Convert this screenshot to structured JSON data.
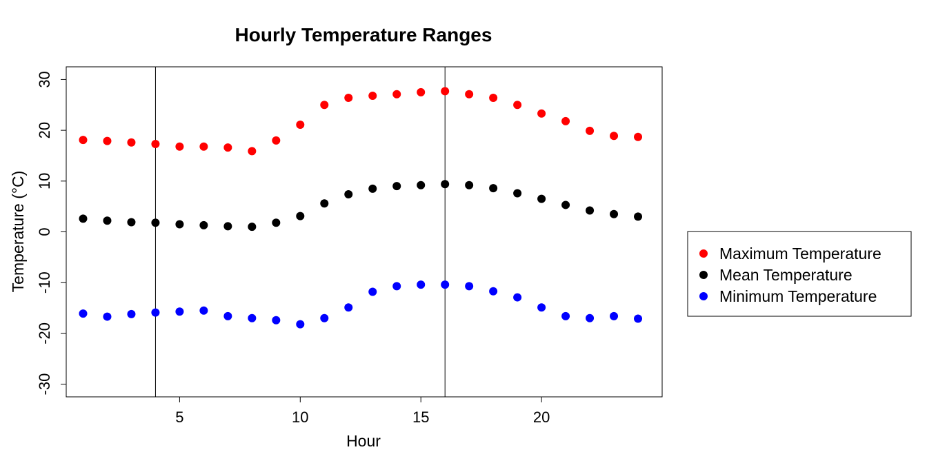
{
  "chart_data": {
    "type": "scatter",
    "title": "Hourly Temperature Ranges",
    "xlabel": "Hour",
    "ylabel": "Temperature (°C)",
    "xlim": [
      0.3,
      25
    ],
    "ylim": [
      -32.5,
      32.5
    ],
    "x_ticks": [
      5,
      10,
      15,
      20
    ],
    "y_ticks": [
      -30,
      -20,
      -10,
      0,
      10,
      20,
      30
    ],
    "vertical_lines": [
      4,
      16
    ],
    "grid": false,
    "legend_position": "right",
    "x": [
      1,
      2,
      3,
      4,
      5,
      6,
      7,
      8,
      9,
      10,
      11,
      12,
      13,
      14,
      15,
      16,
      17,
      18,
      19,
      20,
      21,
      22,
      23,
      24
    ],
    "series": [
      {
        "name": "Maximum Temperature",
        "color": "#ff0000",
        "values": [
          18.1,
          17.9,
          17.6,
          17.3,
          16.8,
          16.8,
          16.6,
          15.9,
          18.0,
          21.1,
          25.0,
          26.4,
          26.8,
          27.1,
          27.5,
          27.7,
          27.1,
          26.4,
          25.0,
          23.3,
          21.8,
          19.9,
          18.9,
          18.7
        ]
      },
      {
        "name": "Mean Temperature",
        "color": "#000000",
        "values": [
          2.6,
          2.2,
          1.9,
          1.8,
          1.5,
          1.3,
          1.1,
          1.0,
          1.8,
          3.1,
          5.6,
          7.4,
          8.5,
          9.0,
          9.2,
          9.4,
          9.2,
          8.6,
          7.6,
          6.5,
          5.3,
          4.2,
          3.5,
          3.0
        ]
      },
      {
        "name": "Minimum Temperature",
        "color": "#0000ff",
        "values": [
          -16.1,
          -16.7,
          -16.2,
          -15.9,
          -15.7,
          -15.5,
          -16.6,
          -17.0,
          -17.4,
          -18.2,
          -17.0,
          -14.9,
          -11.8,
          -10.7,
          -10.4,
          -10.4,
          -10.7,
          -11.7,
          -12.9,
          -14.9,
          -16.6,
          -17.0,
          -16.6,
          -17.1
        ]
      }
    ]
  }
}
